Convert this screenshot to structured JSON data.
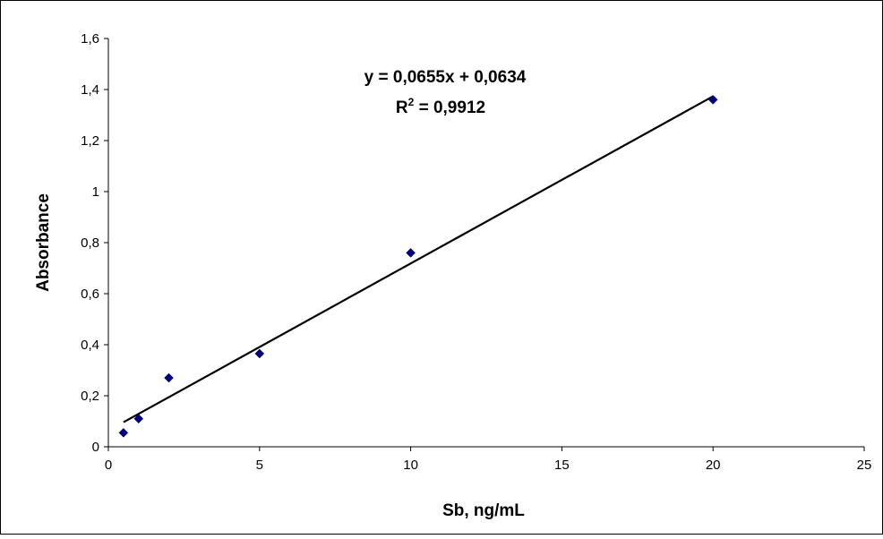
{
  "chart_data": {
    "type": "scatter",
    "title": "",
    "xlabel": "Sb, ng/mL",
    "ylabel": "Absorbance",
    "xlim": [
      0,
      25
    ],
    "ylim": [
      0,
      1.6
    ],
    "x_ticks": [
      0,
      5,
      10,
      15,
      20,
      25
    ],
    "y_ticks": [
      0,
      0.2,
      0.4,
      0.6,
      0.8,
      1,
      1.2,
      1.4,
      1.6
    ],
    "x_tick_labels": [
      "0",
      "5",
      "10",
      "15",
      "20",
      "25"
    ],
    "y_tick_labels": [
      "0",
      "0,2",
      "0,4",
      "0,6",
      "0,8",
      "1",
      "1,2",
      "1,4",
      "1,6"
    ],
    "grid": false,
    "legend": "none",
    "series": [
      {
        "marker": "diamond",
        "color": "#00007f",
        "x": [
          0.5,
          1,
          2,
          5,
          10,
          20
        ],
        "y": [
          0.055,
          0.11,
          0.27,
          0.365,
          0.76,
          1.36
        ]
      }
    ],
    "trendline": {
      "type": "linear",
      "slope": 0.0655,
      "intercept": 0.0634,
      "x_range": [
        0.5,
        20
      ],
      "color": "#000000"
    },
    "annotation": {
      "equation": "y = 0,0655x + 0,0634",
      "r2_prefix": "R",
      "r2_superscript": "2",
      "r2_suffix": " = 0,9912"
    }
  }
}
